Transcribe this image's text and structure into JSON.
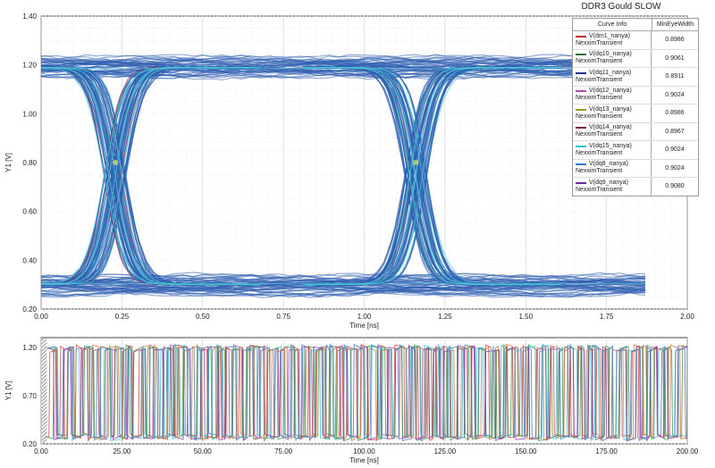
{
  "chart_data": [
    {
      "type": "eye-diagram",
      "title": "DDR3 Gould SLOW",
      "xlabel": "Time [ns]",
      "ylabel": "Y1 [V]",
      "xlim": [
        0.0,
        2.0
      ],
      "ylim": [
        0.2,
        1.4
      ],
      "x_ticks": [
        "0.00",
        "0.25",
        "0.50",
        "0.75",
        "1.00",
        "1.25",
        "1.50",
        "1.75",
        "2.00"
      ],
      "y_ticks": [
        "0.20",
        "0.40",
        "0.60",
        "0.80",
        "1.00",
        "1.20",
        "1.40"
      ],
      "grid": true,
      "legend_position": "top-right",
      "legend_columns": [
        "Curve Info",
        "MinEyeWidth"
      ],
      "series": [
        {
          "name": "V(dm1_nanya)",
          "source": "NexximTransient",
          "min_eye_width": "0.8986",
          "color": "#cc2a2a"
        },
        {
          "name": "V(dq10_nanya)",
          "source": "NexximTransient",
          "min_eye_width": "0.9061",
          "color": "#2a6b3a"
        },
        {
          "name": "V(dq11_nanya)",
          "source": "NexximTransient",
          "min_eye_width": "0.8911",
          "color": "#1f2f8a"
        },
        {
          "name": "V(dq12_nanya)",
          "source": "NexximTransient",
          "min_eye_width": "0.9024",
          "color": "#b44aa0"
        },
        {
          "name": "V(dq13_nanya)",
          "source": "NexximTransient",
          "min_eye_width": "0.8986",
          "color": "#9a9a2a"
        },
        {
          "name": "V(dq14_nanya)",
          "source": "NexximTransient",
          "min_eye_width": "0.8967",
          "color": "#7a2a3a"
        },
        {
          "name": "V(dq15_nanya)",
          "source": "NexximTransient",
          "min_eye_width": "0.9024",
          "color": "#2ac8c8"
        },
        {
          "name": "V(dq8_nanya)",
          "source": "NexximTransient",
          "min_eye_width": "0.9024",
          "color": "#2a7acc"
        },
        {
          "name": "V(dq9_nanya)",
          "source": "NexximTransient",
          "min_eye_width": "0.9080",
          "color": "#6a2a9a"
        }
      ],
      "eye": {
        "high_level": 1.19,
        "low_level": 0.3,
        "crossing_level": 0.8,
        "crossings_ns": [
          0.23,
          1.16
        ],
        "data_end_ns": 1.87,
        "trace_color": "#2f5fb0",
        "highlight_colors": [
          "#4ec8d8",
          "#e0e060",
          "#8a2a4a"
        ]
      }
    },
    {
      "type": "line",
      "xlabel": "Time [ns]",
      "ylabel": "Y1 [V]",
      "xlim": [
        0.0,
        200.0
      ],
      "ylim": [
        0.2,
        1.3
      ],
      "x_ticks": [
        "0.00",
        "25.00",
        "50.00",
        "75.00",
        "100.00",
        "125.00",
        "150.00",
        "175.00",
        "200.00"
      ],
      "y_ticks": [
        "0.20",
        "0.70",
        "1.20"
      ],
      "grid": true,
      "high_level": 1.19,
      "low_level": 0.27,
      "bit_period_ns": 0.94,
      "start_ns": 1.5,
      "trace_colors": [
        "#cc2a2a",
        "#2f5fb0",
        "#2a8a3a",
        "#8a2aa0",
        "#cc6a2a",
        "#2ab0c8"
      ]
    }
  ],
  "ui": {
    "title_color": "#222222",
    "grid_color": "#d8d8d8",
    "axis_color": "#444444"
  }
}
